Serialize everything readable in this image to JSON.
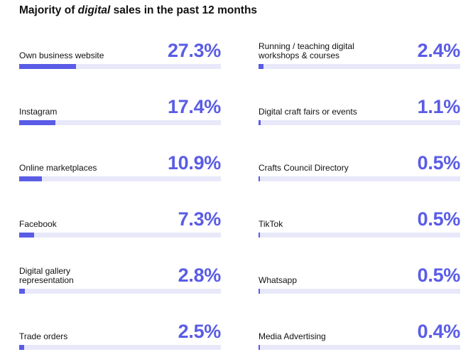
{
  "chart_data": {
    "type": "bar",
    "title_parts": [
      "Majority of ",
      "digital",
      " sales in the past 12 months"
    ],
    "accent_color": "#5a5ce6",
    "track_color": "#e8e8fa",
    "columns": [
      [
        {
          "label": "Own business website",
          "value_text": "27.3%",
          "value": 27.3
        },
        {
          "label": "Instagram",
          "value_text": "17.4%",
          "value": 17.4
        },
        {
          "label": "Online marketplaces",
          "value_text": "10.9%",
          "value": 10.9
        },
        {
          "label": "Facebook",
          "value_text": "7.3%",
          "value": 7.3
        },
        {
          "label": "Digital gallery representation",
          "value_text": "2.8%",
          "value": 2.8
        },
        {
          "label": "Trade orders",
          "value_text": "2.5%",
          "value": 2.5
        }
      ],
      [
        {
          "label": "Running / teaching digital workshops & courses",
          "value_text": "2.4%",
          "value": 2.4
        },
        {
          "label": "Digital craft fairs or events",
          "value_text": "1.1%",
          "value": 1.1
        },
        {
          "label": "Crafts Council Directory",
          "value_text": "0.5%",
          "value": 0.5
        },
        {
          "label": "TikTok",
          "value_text": "0.5%",
          "value": 0.5
        },
        {
          "label": "Whatsapp",
          "value_text": "0.5%",
          "value": 0.5
        },
        {
          "label": "Media Advertising",
          "value_text": "0.4%",
          "value": 0.4
        }
      ]
    ]
  }
}
